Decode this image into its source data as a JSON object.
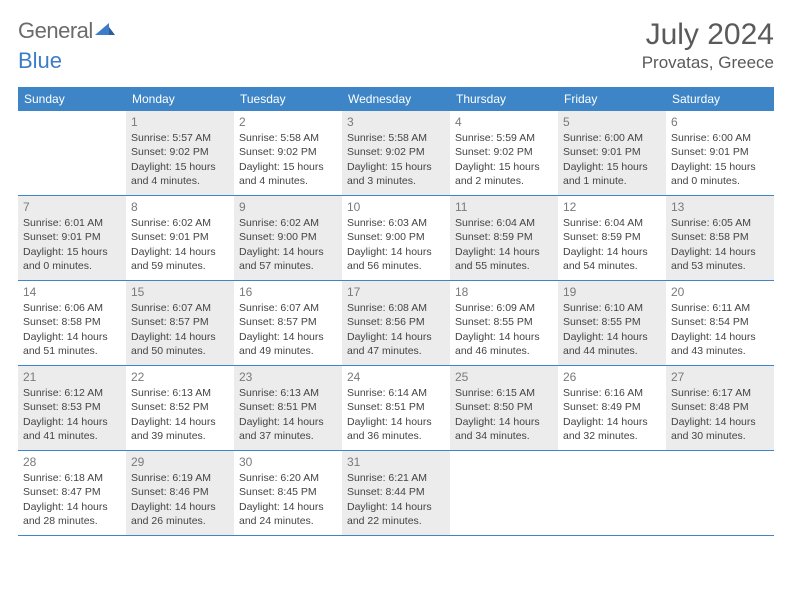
{
  "brand": {
    "part1": "General",
    "part2": "Blue"
  },
  "title": "July 2024",
  "location": "Provatas, Greece",
  "colors": {
    "header_bg": "#3d85c6",
    "divider": "#3d85c6",
    "shaded_bg": "#ececec",
    "page_bg": "#ffffff",
    "text": "#444444",
    "daynum": "#7a7a7a"
  },
  "dow": [
    "Sunday",
    "Monday",
    "Tuesday",
    "Wednesday",
    "Thursday",
    "Friday",
    "Saturday"
  ],
  "weeks": [
    [
      {
        "n": "",
        "sr": "",
        "ss": "",
        "d1": "",
        "d2": "",
        "shaded": false
      },
      {
        "n": "1",
        "sr": "Sunrise: 5:57 AM",
        "ss": "Sunset: 9:02 PM",
        "d1": "Daylight: 15 hours",
        "d2": "and 4 minutes.",
        "shaded": true
      },
      {
        "n": "2",
        "sr": "Sunrise: 5:58 AM",
        "ss": "Sunset: 9:02 PM",
        "d1": "Daylight: 15 hours",
        "d2": "and 4 minutes.",
        "shaded": false
      },
      {
        "n": "3",
        "sr": "Sunrise: 5:58 AM",
        "ss": "Sunset: 9:02 PM",
        "d1": "Daylight: 15 hours",
        "d2": "and 3 minutes.",
        "shaded": true
      },
      {
        "n": "4",
        "sr": "Sunrise: 5:59 AM",
        "ss": "Sunset: 9:02 PM",
        "d1": "Daylight: 15 hours",
        "d2": "and 2 minutes.",
        "shaded": false
      },
      {
        "n": "5",
        "sr": "Sunrise: 6:00 AM",
        "ss": "Sunset: 9:01 PM",
        "d1": "Daylight: 15 hours",
        "d2": "and 1 minute.",
        "shaded": true
      },
      {
        "n": "6",
        "sr": "Sunrise: 6:00 AM",
        "ss": "Sunset: 9:01 PM",
        "d1": "Daylight: 15 hours",
        "d2": "and 0 minutes.",
        "shaded": false
      }
    ],
    [
      {
        "n": "7",
        "sr": "Sunrise: 6:01 AM",
        "ss": "Sunset: 9:01 PM",
        "d1": "Daylight: 15 hours",
        "d2": "and 0 minutes.",
        "shaded": true
      },
      {
        "n": "8",
        "sr": "Sunrise: 6:02 AM",
        "ss": "Sunset: 9:01 PM",
        "d1": "Daylight: 14 hours",
        "d2": "and 59 minutes.",
        "shaded": false
      },
      {
        "n": "9",
        "sr": "Sunrise: 6:02 AM",
        "ss": "Sunset: 9:00 PM",
        "d1": "Daylight: 14 hours",
        "d2": "and 57 minutes.",
        "shaded": true
      },
      {
        "n": "10",
        "sr": "Sunrise: 6:03 AM",
        "ss": "Sunset: 9:00 PM",
        "d1": "Daylight: 14 hours",
        "d2": "and 56 minutes.",
        "shaded": false
      },
      {
        "n": "11",
        "sr": "Sunrise: 6:04 AM",
        "ss": "Sunset: 8:59 PM",
        "d1": "Daylight: 14 hours",
        "d2": "and 55 minutes.",
        "shaded": true
      },
      {
        "n": "12",
        "sr": "Sunrise: 6:04 AM",
        "ss": "Sunset: 8:59 PM",
        "d1": "Daylight: 14 hours",
        "d2": "and 54 minutes.",
        "shaded": false
      },
      {
        "n": "13",
        "sr": "Sunrise: 6:05 AM",
        "ss": "Sunset: 8:58 PM",
        "d1": "Daylight: 14 hours",
        "d2": "and 53 minutes.",
        "shaded": true
      }
    ],
    [
      {
        "n": "14",
        "sr": "Sunrise: 6:06 AM",
        "ss": "Sunset: 8:58 PM",
        "d1": "Daylight: 14 hours",
        "d2": "and 51 minutes.",
        "shaded": false
      },
      {
        "n": "15",
        "sr": "Sunrise: 6:07 AM",
        "ss": "Sunset: 8:57 PM",
        "d1": "Daylight: 14 hours",
        "d2": "and 50 minutes.",
        "shaded": true
      },
      {
        "n": "16",
        "sr": "Sunrise: 6:07 AM",
        "ss": "Sunset: 8:57 PM",
        "d1": "Daylight: 14 hours",
        "d2": "and 49 minutes.",
        "shaded": false
      },
      {
        "n": "17",
        "sr": "Sunrise: 6:08 AM",
        "ss": "Sunset: 8:56 PM",
        "d1": "Daylight: 14 hours",
        "d2": "and 47 minutes.",
        "shaded": true
      },
      {
        "n": "18",
        "sr": "Sunrise: 6:09 AM",
        "ss": "Sunset: 8:55 PM",
        "d1": "Daylight: 14 hours",
        "d2": "and 46 minutes.",
        "shaded": false
      },
      {
        "n": "19",
        "sr": "Sunrise: 6:10 AM",
        "ss": "Sunset: 8:55 PM",
        "d1": "Daylight: 14 hours",
        "d2": "and 44 minutes.",
        "shaded": true
      },
      {
        "n": "20",
        "sr": "Sunrise: 6:11 AM",
        "ss": "Sunset: 8:54 PM",
        "d1": "Daylight: 14 hours",
        "d2": "and 43 minutes.",
        "shaded": false
      }
    ],
    [
      {
        "n": "21",
        "sr": "Sunrise: 6:12 AM",
        "ss": "Sunset: 8:53 PM",
        "d1": "Daylight: 14 hours",
        "d2": "and 41 minutes.",
        "shaded": true
      },
      {
        "n": "22",
        "sr": "Sunrise: 6:13 AM",
        "ss": "Sunset: 8:52 PM",
        "d1": "Daylight: 14 hours",
        "d2": "and 39 minutes.",
        "shaded": false
      },
      {
        "n": "23",
        "sr": "Sunrise: 6:13 AM",
        "ss": "Sunset: 8:51 PM",
        "d1": "Daylight: 14 hours",
        "d2": "and 37 minutes.",
        "shaded": true
      },
      {
        "n": "24",
        "sr": "Sunrise: 6:14 AM",
        "ss": "Sunset: 8:51 PM",
        "d1": "Daylight: 14 hours",
        "d2": "and 36 minutes.",
        "shaded": false
      },
      {
        "n": "25",
        "sr": "Sunrise: 6:15 AM",
        "ss": "Sunset: 8:50 PM",
        "d1": "Daylight: 14 hours",
        "d2": "and 34 minutes.",
        "shaded": true
      },
      {
        "n": "26",
        "sr": "Sunrise: 6:16 AM",
        "ss": "Sunset: 8:49 PM",
        "d1": "Daylight: 14 hours",
        "d2": "and 32 minutes.",
        "shaded": false
      },
      {
        "n": "27",
        "sr": "Sunrise: 6:17 AM",
        "ss": "Sunset: 8:48 PM",
        "d1": "Daylight: 14 hours",
        "d2": "and 30 minutes.",
        "shaded": true
      }
    ],
    [
      {
        "n": "28",
        "sr": "Sunrise: 6:18 AM",
        "ss": "Sunset: 8:47 PM",
        "d1": "Daylight: 14 hours",
        "d2": "and 28 minutes.",
        "shaded": false
      },
      {
        "n": "29",
        "sr": "Sunrise: 6:19 AM",
        "ss": "Sunset: 8:46 PM",
        "d1": "Daylight: 14 hours",
        "d2": "and 26 minutes.",
        "shaded": true
      },
      {
        "n": "30",
        "sr": "Sunrise: 6:20 AM",
        "ss": "Sunset: 8:45 PM",
        "d1": "Daylight: 14 hours",
        "d2": "and 24 minutes.",
        "shaded": false
      },
      {
        "n": "31",
        "sr": "Sunrise: 6:21 AM",
        "ss": "Sunset: 8:44 PM",
        "d1": "Daylight: 14 hours",
        "d2": "and 22 minutes.",
        "shaded": true
      },
      {
        "n": "",
        "sr": "",
        "ss": "",
        "d1": "",
        "d2": "",
        "shaded": false
      },
      {
        "n": "",
        "sr": "",
        "ss": "",
        "d1": "",
        "d2": "",
        "shaded": false
      },
      {
        "n": "",
        "sr": "",
        "ss": "",
        "d1": "",
        "d2": "",
        "shaded": false
      }
    ]
  ]
}
